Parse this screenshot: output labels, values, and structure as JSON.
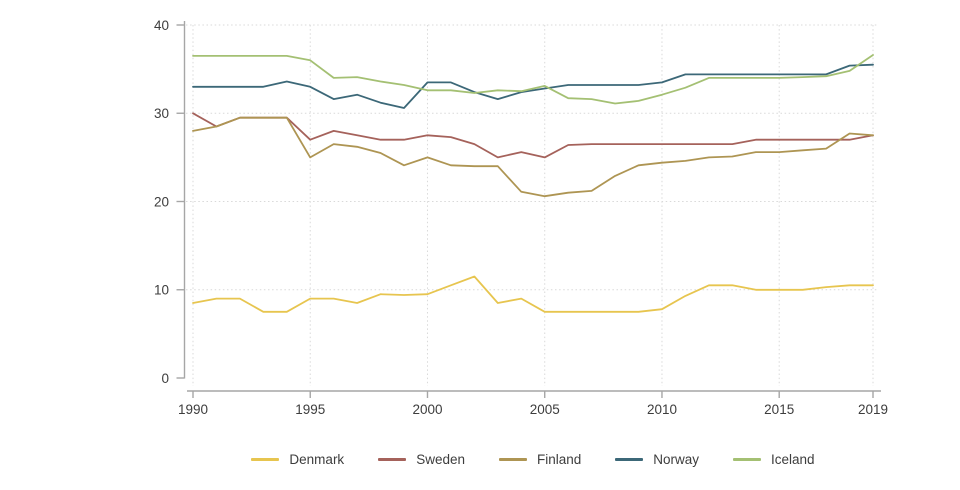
{
  "chart_data": {
    "type": "line",
    "title": "",
    "xlabel": "",
    "ylabel": "",
    "xlim": [
      1990,
      2019
    ],
    "ylim": [
      0,
      40
    ],
    "x_ticks": [
      1990,
      1995,
      2000,
      2005,
      2010,
      2015,
      2019
    ],
    "y_ticks": [
      0,
      10,
      20,
      30,
      40
    ],
    "grid": "dotted",
    "legend_position": "bottom-center",
    "x": [
      1990,
      1991,
      1992,
      1993,
      1994,
      1995,
      1996,
      1997,
      1998,
      1999,
      2000,
      2001,
      2002,
      2003,
      2004,
      2005,
      2006,
      2007,
      2008,
      2009,
      2010,
      2011,
      2012,
      2013,
      2014,
      2015,
      2016,
      2017,
      2018,
      2019
    ],
    "series": [
      {
        "name": "Denmark",
        "color": "#e7c54f",
        "values": [
          8.5,
          9.0,
          9.0,
          7.5,
          7.5,
          9.0,
          9.0,
          8.5,
          9.5,
          9.4,
          9.5,
          10.5,
          11.5,
          8.5,
          9.0,
          7.5,
          7.5,
          7.5,
          7.5,
          7.5,
          7.8,
          9.3,
          10.5,
          10.5,
          10.0,
          10.0,
          10.0,
          10.3,
          10.5,
          10.5
        ]
      },
      {
        "name": "Sweden",
        "color": "#a5625b",
        "values": [
          30.0,
          28.5,
          29.5,
          29.5,
          29.5,
          27.0,
          28.0,
          27.5,
          27.0,
          27.0,
          27.5,
          27.3,
          26.5,
          25.0,
          25.6,
          25.0,
          26.4,
          26.5,
          26.5,
          26.5,
          26.5,
          26.5,
          26.5,
          26.5,
          27.0,
          27.0,
          27.0,
          27.0,
          27.0,
          27.5
        ]
      },
      {
        "name": "Finland",
        "color": "#ae9553",
        "values": [
          28.0,
          28.5,
          29.5,
          29.5,
          29.5,
          25.0,
          26.5,
          26.2,
          25.5,
          24.1,
          25.0,
          24.1,
          24.0,
          24.0,
          21.1,
          20.6,
          21.0,
          21.2,
          22.9,
          24.1,
          24.4,
          24.6,
          25.0,
          25.1,
          25.6,
          25.6,
          25.8,
          26.0,
          27.7,
          27.5
        ]
      },
      {
        "name": "Norway",
        "color": "#3c6878",
        "values": [
          33.0,
          33.0,
          33.0,
          33.0,
          33.6,
          33.0,
          31.6,
          32.1,
          31.2,
          30.6,
          33.5,
          33.5,
          32.4,
          31.6,
          32.4,
          32.8,
          33.2,
          33.2,
          33.2,
          33.2,
          33.5,
          34.4,
          34.4,
          34.4,
          34.4,
          34.4,
          34.4,
          34.4,
          35.4,
          35.5
        ]
      },
      {
        "name": "Iceland",
        "color": "#a4c073",
        "values": [
          36.5,
          36.5,
          36.5,
          36.5,
          36.5,
          36.0,
          34.0,
          34.1,
          33.6,
          33.2,
          32.6,
          32.6,
          32.3,
          32.6,
          32.5,
          33.1,
          31.7,
          31.6,
          31.1,
          31.4,
          32.1,
          32.9,
          34.0,
          34.0,
          34.0,
          34.0,
          34.1,
          34.2,
          34.8,
          36.6
        ]
      }
    ]
  },
  "colors": {
    "background": "#ffffff",
    "axis": "#a6a6a6",
    "grid": "#d9d9d9",
    "text": "#3d3d3d"
  }
}
